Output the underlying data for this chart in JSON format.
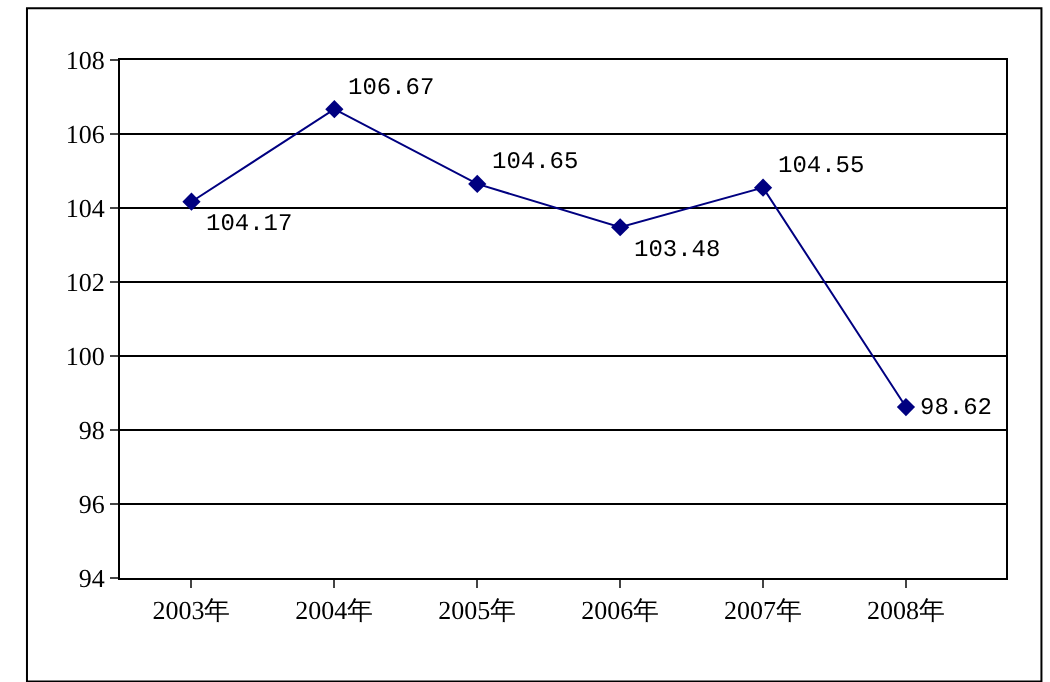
{
  "chart_data": {
    "type": "line",
    "categories": [
      "2003年",
      "2004年",
      "2005年",
      "2006年",
      "2007年",
      "2008年"
    ],
    "series": [
      {
        "color": "#000080",
        "values": [
          104.17,
          106.67,
          104.65,
          103.48,
          104.55,
          98.62
        ]
      }
    ],
    "ylim": [
      94,
      108
    ],
    "yticks": [
      94,
      96,
      98,
      100,
      102,
      104,
      106,
      108
    ],
    "grid": "y",
    "marker": "diamond",
    "line_style": "solid",
    "data_labels": true,
    "legend": false
  }
}
